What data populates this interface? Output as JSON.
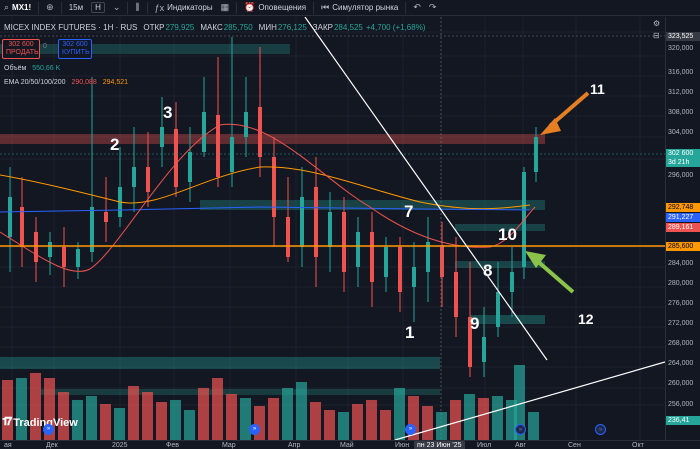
{
  "toolbar": {
    "symbol": "MX1!",
    "interval": "15м",
    "interval_selected": "Н",
    "indicators": "Индикаторы",
    "alerts": "Оповещения",
    "replay": "Симулятор рынка"
  },
  "legend": {
    "title": "MICEX INDEX FUTURES · 1H · RUS",
    "open_k": "ОТКР",
    "open_v": "279,925",
    "high_k": "МАКС",
    "high_v": "285,750",
    "low_k": "МИН",
    "low_v": "276,125",
    "close_k": "ЗАКР",
    "close_v": "284,525",
    "change": "+4,700 (+1,68%)",
    "sell_price": "302 600",
    "sell_label": "ПРОДАТЬ",
    "qty": "0",
    "buy_price": "302 600",
    "buy_label": "КУПИТЬ",
    "volume_label": "Объём",
    "volume_value": "550,66 K",
    "ema_label": "EMA 20/50/100/200",
    "ema_v1": "290,088",
    "ema_v2": "294,521"
  },
  "price_axis": {
    "top_tag": "323,525",
    "ticks": [
      "320,000",
      "316,000",
      "312,000",
      "308,000",
      "304,000",
      "300,000",
      "296,000",
      "284,000",
      "280,000",
      "276,000",
      "272,000",
      "268,000",
      "264,000",
      "260,000",
      "256,000",
      "252,000"
    ],
    "current_price": "302 600",
    "countdown": "3d 21h",
    "tag_orange": "292,748",
    "tag_blue": "291,227",
    "tag_red": "289,161",
    "tag_hline": "285,600",
    "tag_volume": "236,41"
  },
  "colors": {
    "up": "#26a69a",
    "down": "#ef5350",
    "accent": "#2962ff",
    "level": "#ff9800"
  },
  "time_axis": {
    "labels": [
      "ая",
      "Дек",
      "2025",
      "Фев",
      "Мар",
      "Апр",
      "Май",
      "Июн",
      "Июл",
      "Авг",
      "Сен",
      "Окт"
    ],
    "crosshair": "пн 23 Июн '25"
  },
  "annotations": [
    "1",
    "2",
    "3",
    "7",
    "8",
    "9",
    "10",
    "11",
    "12"
  ],
  "branding": {
    "logo": "TradingView"
  },
  "chart_data": {
    "type": "candlestick",
    "title": "MICEX INDEX FUTURES · 1H · RUS",
    "x": [
      "Дек",
      "2025",
      "Фев",
      "Мар",
      "Апр",
      "Май",
      "Июн",
      "Июл",
      "Авг",
      "Сен",
      "Окт"
    ],
    "ylim": [
      250,
      324
    ],
    "horizontal_level": 285.6,
    "series": [
      {
        "name": "EMA 20",
        "values_end": 290.088
      },
      {
        "name": "EMA 50",
        "values_end": 294.521
      }
    ],
    "last_price": 302.6,
    "volume_last": 236.41,
    "grid": true
  }
}
